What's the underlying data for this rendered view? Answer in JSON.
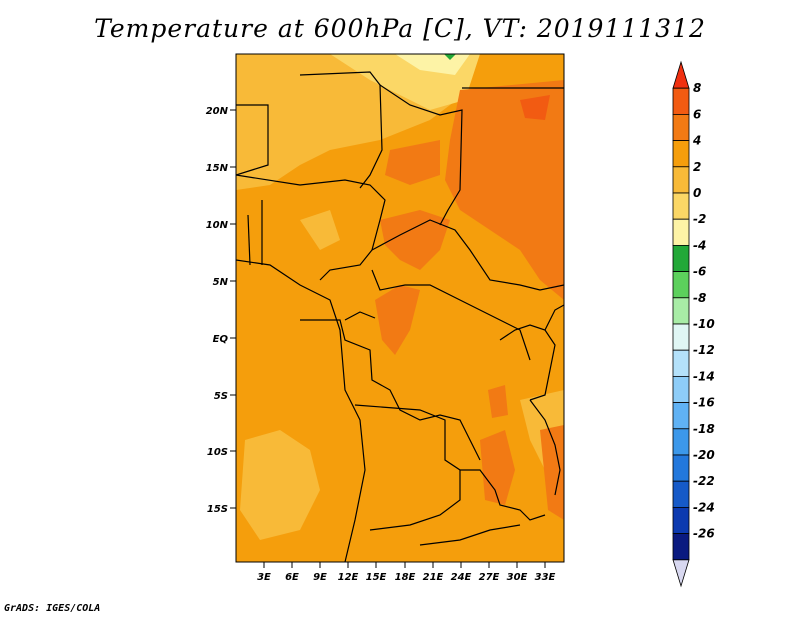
{
  "title": "Temperature at 600hPa [C], VT: 2019111312",
  "footer": "GrADS: IGES/COLA",
  "map": {
    "lat_labels": [
      "20N",
      "15N",
      "10N",
      "5N",
      "EQ",
      "5S",
      "10S",
      "15S"
    ],
    "lon_labels": [
      "3E",
      "6E",
      "9E",
      "12E",
      "15E",
      "18E",
      "21E",
      "24E",
      "27E",
      "30E",
      "33E"
    ]
  },
  "colorbar": {
    "labels": [
      "8",
      "6",
      "4",
      "2",
      "0",
      "-2",
      "-4",
      "-6",
      "-8",
      "-10",
      "-12",
      "-14",
      "-16",
      "-18",
      "-20",
      "-22",
      "-24",
      "-26"
    ],
    "colors": [
      "#f03010",
      "#f25b12",
      "#f27a14",
      "#f59e0c",
      "#f8ba38",
      "#fbd766",
      "#fdf3a6",
      "#22a838",
      "#5cd05c",
      "#a8eca6",
      "#e0f6f4",
      "#b4e1fa",
      "#8ecdf8",
      "#60b2f4",
      "#3c98ea",
      "#2378dc",
      "#165ac8",
      "#0c3ab0",
      "#0a1a80",
      "#d8d8f0"
    ]
  }
}
